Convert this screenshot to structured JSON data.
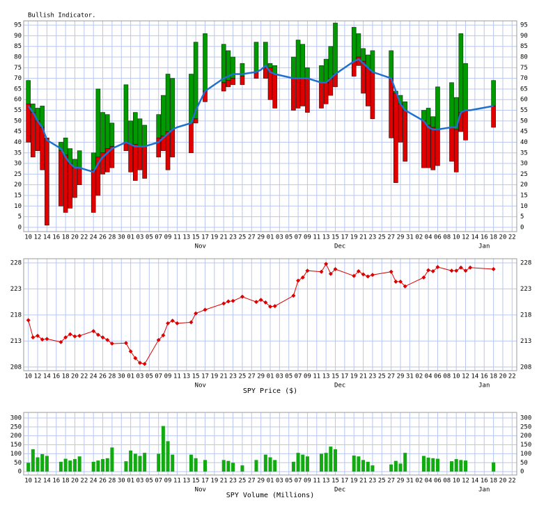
{
  "chart_data": {
    "x": [
      "Oct 10",
      "Oct 11",
      "Oct 12",
      "Oct 13",
      "Oct 14",
      "Oct 17",
      "Oct 18",
      "Oct 19",
      "Oct 20",
      "Oct 21",
      "Oct 24",
      "Oct 25",
      "Oct 26",
      "Oct 27",
      "Oct 28",
      "Oct 31",
      "Nov 1",
      "Nov 2",
      "Nov 3",
      "Nov 4",
      "Nov 7",
      "Nov 8",
      "Nov 9",
      "Nov 10",
      "Nov 11",
      "Nov 14",
      "Nov 15",
      "Nov 17",
      "Nov 21",
      "Nov 22",
      "Nov 23",
      "Nov 25",
      "Nov 28",
      "Nov 29",
      "Nov 30",
      "Dec 1",
      "Dec 2",
      "Dec 6",
      "Dec 7",
      "Dec 8",
      "Dec 9",
      "Dec 12",
      "Dec 13",
      "Dec 14",
      "Dec 15",
      "Dec 19",
      "Dec 20",
      "Dec 21",
      "Dec 22",
      "Dec 23",
      "Dec 27",
      "Dec 28",
      "Dec 29",
      "Dec 30",
      "Jan 3",
      "Jan 4",
      "Jan 5",
      "Jan 6",
      "Jan 9",
      "Jan 10",
      "Jan 11",
      "Jan 12",
      "Jan 13",
      "Jan 18"
    ],
    "xlim": [
      "Oct 9",
      "Jan 23"
    ],
    "xticks": [
      {
        "value": "Oct 10",
        "label": "10"
      },
      {
        "value": "Oct 12",
        "label": "12"
      },
      {
        "value": "Oct 14",
        "label": "14"
      },
      {
        "value": "Oct 16",
        "label": "16"
      },
      {
        "value": "Oct 18",
        "label": "18"
      },
      {
        "value": "Oct 20",
        "label": "20"
      },
      {
        "value": "Oct 22",
        "label": "22"
      },
      {
        "value": "Oct 24",
        "label": "24"
      },
      {
        "value": "Oct 26",
        "label": "26"
      },
      {
        "value": "Oct 28",
        "label": "28"
      },
      {
        "value": "Oct 30",
        "label": "30"
      },
      {
        "value": "Nov 1",
        "label": "01"
      },
      {
        "value": "Nov 3",
        "label": "03"
      },
      {
        "value": "Nov 5",
        "label": "05"
      },
      {
        "value": "Nov 7",
        "label": "07"
      },
      {
        "value": "Nov 9",
        "label": "09"
      },
      {
        "value": "Nov 11",
        "label": "11"
      },
      {
        "value": "Nov 13",
        "label": "13"
      },
      {
        "value": "Nov 15",
        "label": "15"
      },
      {
        "value": "Nov 17",
        "label": "17"
      },
      {
        "value": "Nov 19",
        "label": "19"
      },
      {
        "value": "Nov 21",
        "label": "21"
      },
      {
        "value": "Nov 23",
        "label": "23"
      },
      {
        "value": "Nov 25",
        "label": "25"
      },
      {
        "value": "Nov 27",
        "label": "27"
      },
      {
        "value": "Nov 29",
        "label": "29"
      },
      {
        "value": "Dec 1",
        "label": "01"
      },
      {
        "value": "Dec 3",
        "label": "03"
      },
      {
        "value": "Dec 5",
        "label": "05"
      },
      {
        "value": "Dec 7",
        "label": "07"
      },
      {
        "value": "Dec 9",
        "label": "09"
      },
      {
        "value": "Dec 11",
        "label": "11"
      },
      {
        "value": "Dec 13",
        "label": "13"
      },
      {
        "value": "Dec 15",
        "label": "15"
      },
      {
        "value": "Dec 17",
        "label": "17"
      },
      {
        "value": "Dec 19",
        "label": "19"
      },
      {
        "value": "Dec 21",
        "label": "21"
      },
      {
        "value": "Dec 23",
        "label": "23"
      },
      {
        "value": "Dec 25",
        "label": "25"
      },
      {
        "value": "Dec 27",
        "label": "27"
      },
      {
        "value": "Dec 29",
        "label": "29"
      },
      {
        "value": "Dec 31",
        "label": "31"
      },
      {
        "value": "Jan 2",
        "label": "02"
      },
      {
        "value": "Jan 4",
        "label": "04"
      },
      {
        "value": "Jan 6",
        "label": "06"
      },
      {
        "value": "Jan 8",
        "label": "08"
      },
      {
        "value": "Jan 10",
        "label": "10"
      },
      {
        "value": "Jan 12",
        "label": "12"
      },
      {
        "value": "Jan 14",
        "label": "14"
      },
      {
        "value": "Jan 16",
        "label": "16"
      },
      {
        "value": "Jan 18",
        "label": "18"
      },
      {
        "value": "Jan 20",
        "label": "20"
      },
      {
        "value": "Jan 22",
        "label": "22"
      }
    ],
    "months": [
      {
        "value": "Nov 16",
        "label": "Nov"
      },
      {
        "value": "Dec 16",
        "label": "Dec"
      },
      {
        "value": "Jan 16",
        "label": "Jan"
      }
    ],
    "grid": true,
    "grid_color": "#b8c6f0",
    "panels": [
      {
        "type": "range-bar",
        "title": "Bullish Indicator.",
        "up_color": "#009900",
        "down_color": "#e00000",
        "line_color": "#1f70d0",
        "high": [
          69,
          58,
          56,
          57,
          42,
          40,
          42,
          37,
          32,
          36,
          35,
          65,
          54,
          53,
          49,
          67,
          50,
          54,
          51,
          48,
          53,
          62,
          72,
          70,
          null,
          72,
          87,
          91,
          86,
          83,
          80,
          77,
          87,
          null,
          87,
          77,
          76,
          80,
          88,
          86,
          75,
          76,
          79,
          85,
          96,
          94,
          91,
          84,
          81,
          83,
          83,
          64,
          62,
          59,
          55,
          56,
          52,
          66,
          68,
          61,
          91,
          77,
          null,
          69
        ],
        "mid": [
          58,
          54,
          50,
          47,
          42,
          36,
          34,
          30,
          28,
          28,
          27,
          33,
          35,
          37,
          38,
          40,
          39,
          39,
          38,
          38,
          42,
          43,
          45,
          46,
          null,
          49,
          51,
          64,
          68,
          69,
          70,
          71,
          73,
          null,
          75,
          75,
          72,
          70,
          70,
          70,
          70,
          68,
          68,
          70,
          72,
          78,
          80,
          78,
          75,
          73,
          70,
          63,
          58,
          55,
          50,
          48,
          47,
          46,
          47,
          46,
          54,
          55,
          null,
          57
        ],
        "low": [
          40,
          33,
          36,
          27,
          1,
          10,
          7,
          9,
          14,
          20,
          7,
          15,
          25,
          26,
          28,
          36,
          26,
          22,
          27,
          23,
          33,
          36,
          27,
          33,
          null,
          35,
          49,
          59,
          64,
          66,
          67,
          67,
          70,
          null,
          70,
          60,
          56,
          55,
          56,
          57,
          54,
          56,
          58,
          62,
          66,
          71,
          76,
          63,
          57,
          51,
          42,
          21,
          40,
          31,
          28,
          28,
          27,
          29,
          31,
          26,
          45,
          41,
          null,
          47
        ],
        "average": [
          57,
          54,
          50,
          47,
          41,
          37,
          33,
          30,
          28,
          28,
          26,
          30,
          33,
          35,
          37,
          40,
          39,
          38,
          38,
          38,
          40,
          42,
          44,
          46,
          47,
          49,
          55,
          64,
          70,
          71,
          72,
          72,
          73,
          74,
          76,
          73,
          72,
          70,
          70,
          70,
          70,
          68,
          68,
          70,
          72,
          78,
          79,
          77,
          75,
          73,
          70,
          64,
          58,
          55,
          50,
          47,
          46,
          46,
          47,
          47,
          54,
          55,
          55,
          57
        ],
        "ylim": [
          -2,
          97
        ],
        "yticks": [
          0,
          5,
          10,
          15,
          20,
          25,
          30,
          35,
          40,
          45,
          50,
          55,
          60,
          65,
          70,
          75,
          80,
          85,
          90,
          95
        ]
      },
      {
        "type": "line",
        "title": "SPY Price ($)",
        "color": "#dd0000",
        "values": [
          217.0,
          213.7,
          214.0,
          213.3,
          213.4,
          212.8,
          213.7,
          214.3,
          213.9,
          214.0,
          214.9,
          214.2,
          213.7,
          213.2,
          212.5,
          212.6,
          211.0,
          209.7,
          208.8,
          208.6,
          213.2,
          214.1,
          216.4,
          216.9,
          216.4,
          216.6,
          218.3,
          219.0,
          220.2,
          220.6,
          220.7,
          221.5,
          220.5,
          220.9,
          220.4,
          219.6,
          219.7,
          221.7,
          224.6,
          225.2,
          226.5,
          226.3,
          227.8,
          225.9,
          226.8,
          225.5,
          226.4,
          225.8,
          225.4,
          225.7,
          226.3,
          224.4,
          224.4,
          223.5,
          225.2,
          226.6,
          226.4,
          227.2,
          226.5,
          226.5,
          227.1,
          226.5,
          227.1,
          226.8
        ],
        "ylim": [
          207.3,
          228.8
        ],
        "yticks": [
          208,
          213,
          218,
          223,
          228
        ]
      },
      {
        "type": "bar",
        "title": "SPY Volume (Millions)",
        "color": "#11aa11",
        "values": [
          50,
          125,
          80,
          98,
          88,
          55,
          72,
          62,
          70,
          85,
          55,
          62,
          70,
          75,
          135,
          58,
          118,
          100,
          88,
          105,
          100,
          255,
          170,
          95,
          null,
          95,
          75,
          65,
          65,
          60,
          50,
          35,
          65,
          null,
          95,
          80,
          65,
          55,
          105,
          95,
          85,
          100,
          105,
          140,
          125,
          90,
          85,
          65,
          55,
          35,
          40,
          60,
          45,
          105,
          88,
          78,
          75,
          72,
          58,
          70,
          65,
          62,
          null,
          52
        ],
        "ylim": [
          -19,
          331
        ],
        "yticks": [
          0,
          50,
          100,
          150,
          200,
          250,
          300
        ]
      }
    ]
  }
}
